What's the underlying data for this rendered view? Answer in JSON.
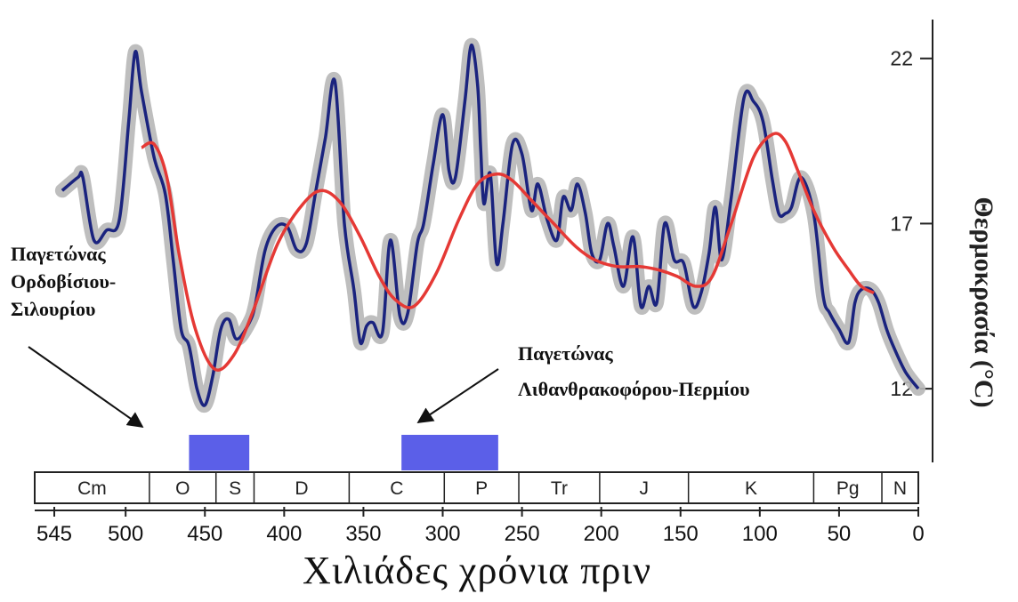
{
  "chart_data": {
    "type": "line",
    "xlabel": "Χιλιάδες χρόνια πριν",
    "ylabel": "Θερμοκρασία (°C)",
    "xlim": [
      545,
      0
    ],
    "ylim": [
      9.5,
      23.5
    ],
    "x_ticks": [
      545,
      500,
      450,
      400,
      350,
      300,
      250,
      200,
      150,
      100,
      50,
      0
    ],
    "y_ticks": [
      12,
      17,
      22
    ],
    "y_axis_side": "right",
    "grid": false,
    "series": [
      {
        "color": "#1a237e",
        "uncertainty_color": "#b7b7b7",
        "x": [
          540,
          530,
          527,
          520,
          512,
          504,
          498,
          494,
          490,
          482,
          475,
          470,
          465,
          460,
          455,
          450,
          445,
          440,
          435,
          430,
          422,
          418,
          412,
          405,
          398,
          392,
          386,
          380,
          374,
          368,
          362,
          356,
          352,
          348,
          344,
          338,
          333,
          327,
          322,
          316,
          312,
          306,
          300,
          296,
          292,
          286,
          282,
          278,
          276,
          274,
          270,
          266,
          262,
          256,
          250,
          244,
          240,
          234,
          228,
          224,
          219,
          215,
          210,
          206,
          201,
          196,
          192,
          186,
          180,
          175,
          170,
          165,
          160,
          154,
          148,
          142,
          137,
          132,
          128,
          124,
          118,
          110,
          104,
          98,
          92,
          88,
          84,
          80,
          74,
          66,
          60,
          56,
          50,
          44,
          40,
          36,
          30,
          25,
          20,
          15,
          8,
          0
        ],
        "y": [
          18.0,
          18.4,
          18.4,
          16.5,
          16.8,
          17.1,
          20.1,
          22.2,
          21.0,
          19.0,
          17.9,
          15.9,
          13.8,
          13.3,
          12.0,
          11.5,
          12.4,
          13.8,
          14.1,
          13.5,
          14.0,
          14.6,
          16.2,
          16.9,
          16.9,
          16.2,
          16.4,
          18.0,
          19.6,
          21.3,
          17.0,
          15.0,
          13.4,
          13.9,
          14.0,
          13.7,
          16.5,
          14.2,
          14.3,
          16.4,
          17.0,
          18.8,
          20.3,
          18.6,
          18.4,
          20.7,
          22.4,
          21.2,
          19.2,
          17.6,
          18.5,
          15.8,
          17.0,
          19.4,
          19.1,
          17.4,
          18.2,
          17.1,
          16.5,
          17.8,
          17.4,
          18.2,
          17.3,
          16.1,
          15.9,
          17.0,
          16.3,
          15.1,
          16.6,
          14.5,
          15.1,
          14.6,
          17.0,
          15.9,
          15.8,
          14.5,
          14.9,
          16.1,
          17.5,
          15.9,
          17.8,
          20.8,
          20.7,
          20.1,
          18.3,
          17.3,
          17.3,
          17.5,
          18.4,
          17.3,
          14.8,
          14.3,
          13.8,
          13.4,
          14.6,
          15.0,
          15.0,
          14.6,
          13.8,
          13.2,
          12.5,
          12.0
        ]
      },
      {
        "color": "#e53935",
        "x": [
          490,
          482,
          474,
          466,
          456,
          444,
          432,
          420,
          404,
          388,
          376,
          364,
          352,
          340,
          330,
          318,
          304,
          290,
          278,
          266,
          256,
          244,
          230,
          216,
          204,
          190,
          176,
          164,
          152,
          140,
          130,
          118,
          104,
          92,
          84,
          76,
          66,
          54,
          44,
          36,
          28
        ],
        "y": [
          19.3,
          19.4,
          18.4,
          16.0,
          13.8,
          12.6,
          13.0,
          14.3,
          16.4,
          17.6,
          18.0,
          17.6,
          16.6,
          15.4,
          14.7,
          14.5,
          15.5,
          17.1,
          18.2,
          18.5,
          18.3,
          17.7,
          17.0,
          16.3,
          15.9,
          15.7,
          15.7,
          15.6,
          15.4,
          15.1,
          15.4,
          17.0,
          19.0,
          19.7,
          19.5,
          18.6,
          17.4,
          16.3,
          15.6,
          15.1,
          14.9
        ]
      }
    ],
    "periods": [
      {
        "label": "Cm",
        "start": 541,
        "end": 485
      },
      {
        "label": "O",
        "start": 485,
        "end": 443
      },
      {
        "label": "S",
        "start": 443,
        "end": 419
      },
      {
        "label": "D",
        "start": 419,
        "end": 359
      },
      {
        "label": "C",
        "start": 359,
        "end": 299
      },
      {
        "label": "P",
        "start": 299,
        "end": 252
      },
      {
        "label": "Tr",
        "start": 252,
        "end": 201
      },
      {
        "label": "J",
        "start": 201,
        "end": 145
      },
      {
        "label": "K",
        "start": 145,
        "end": 66
      },
      {
        "label": "Pg",
        "start": 66,
        "end": 23
      },
      {
        "label": "N",
        "start": 23,
        "end": 0
      }
    ],
    "glaciations": [
      {
        "label_lines": [
          "Παγετώνας",
          "Ορδοβίσιου-",
          "Σιλουρίου"
        ],
        "start": 460,
        "end": 422,
        "color": "#5b5fe8"
      },
      {
        "label_lines": [
          "Παγετώνας",
          "Λιθανθρακοφόρου-Περμίου"
        ],
        "start": 326,
        "end": 265,
        "color": "#5b5fe8"
      }
    ]
  }
}
